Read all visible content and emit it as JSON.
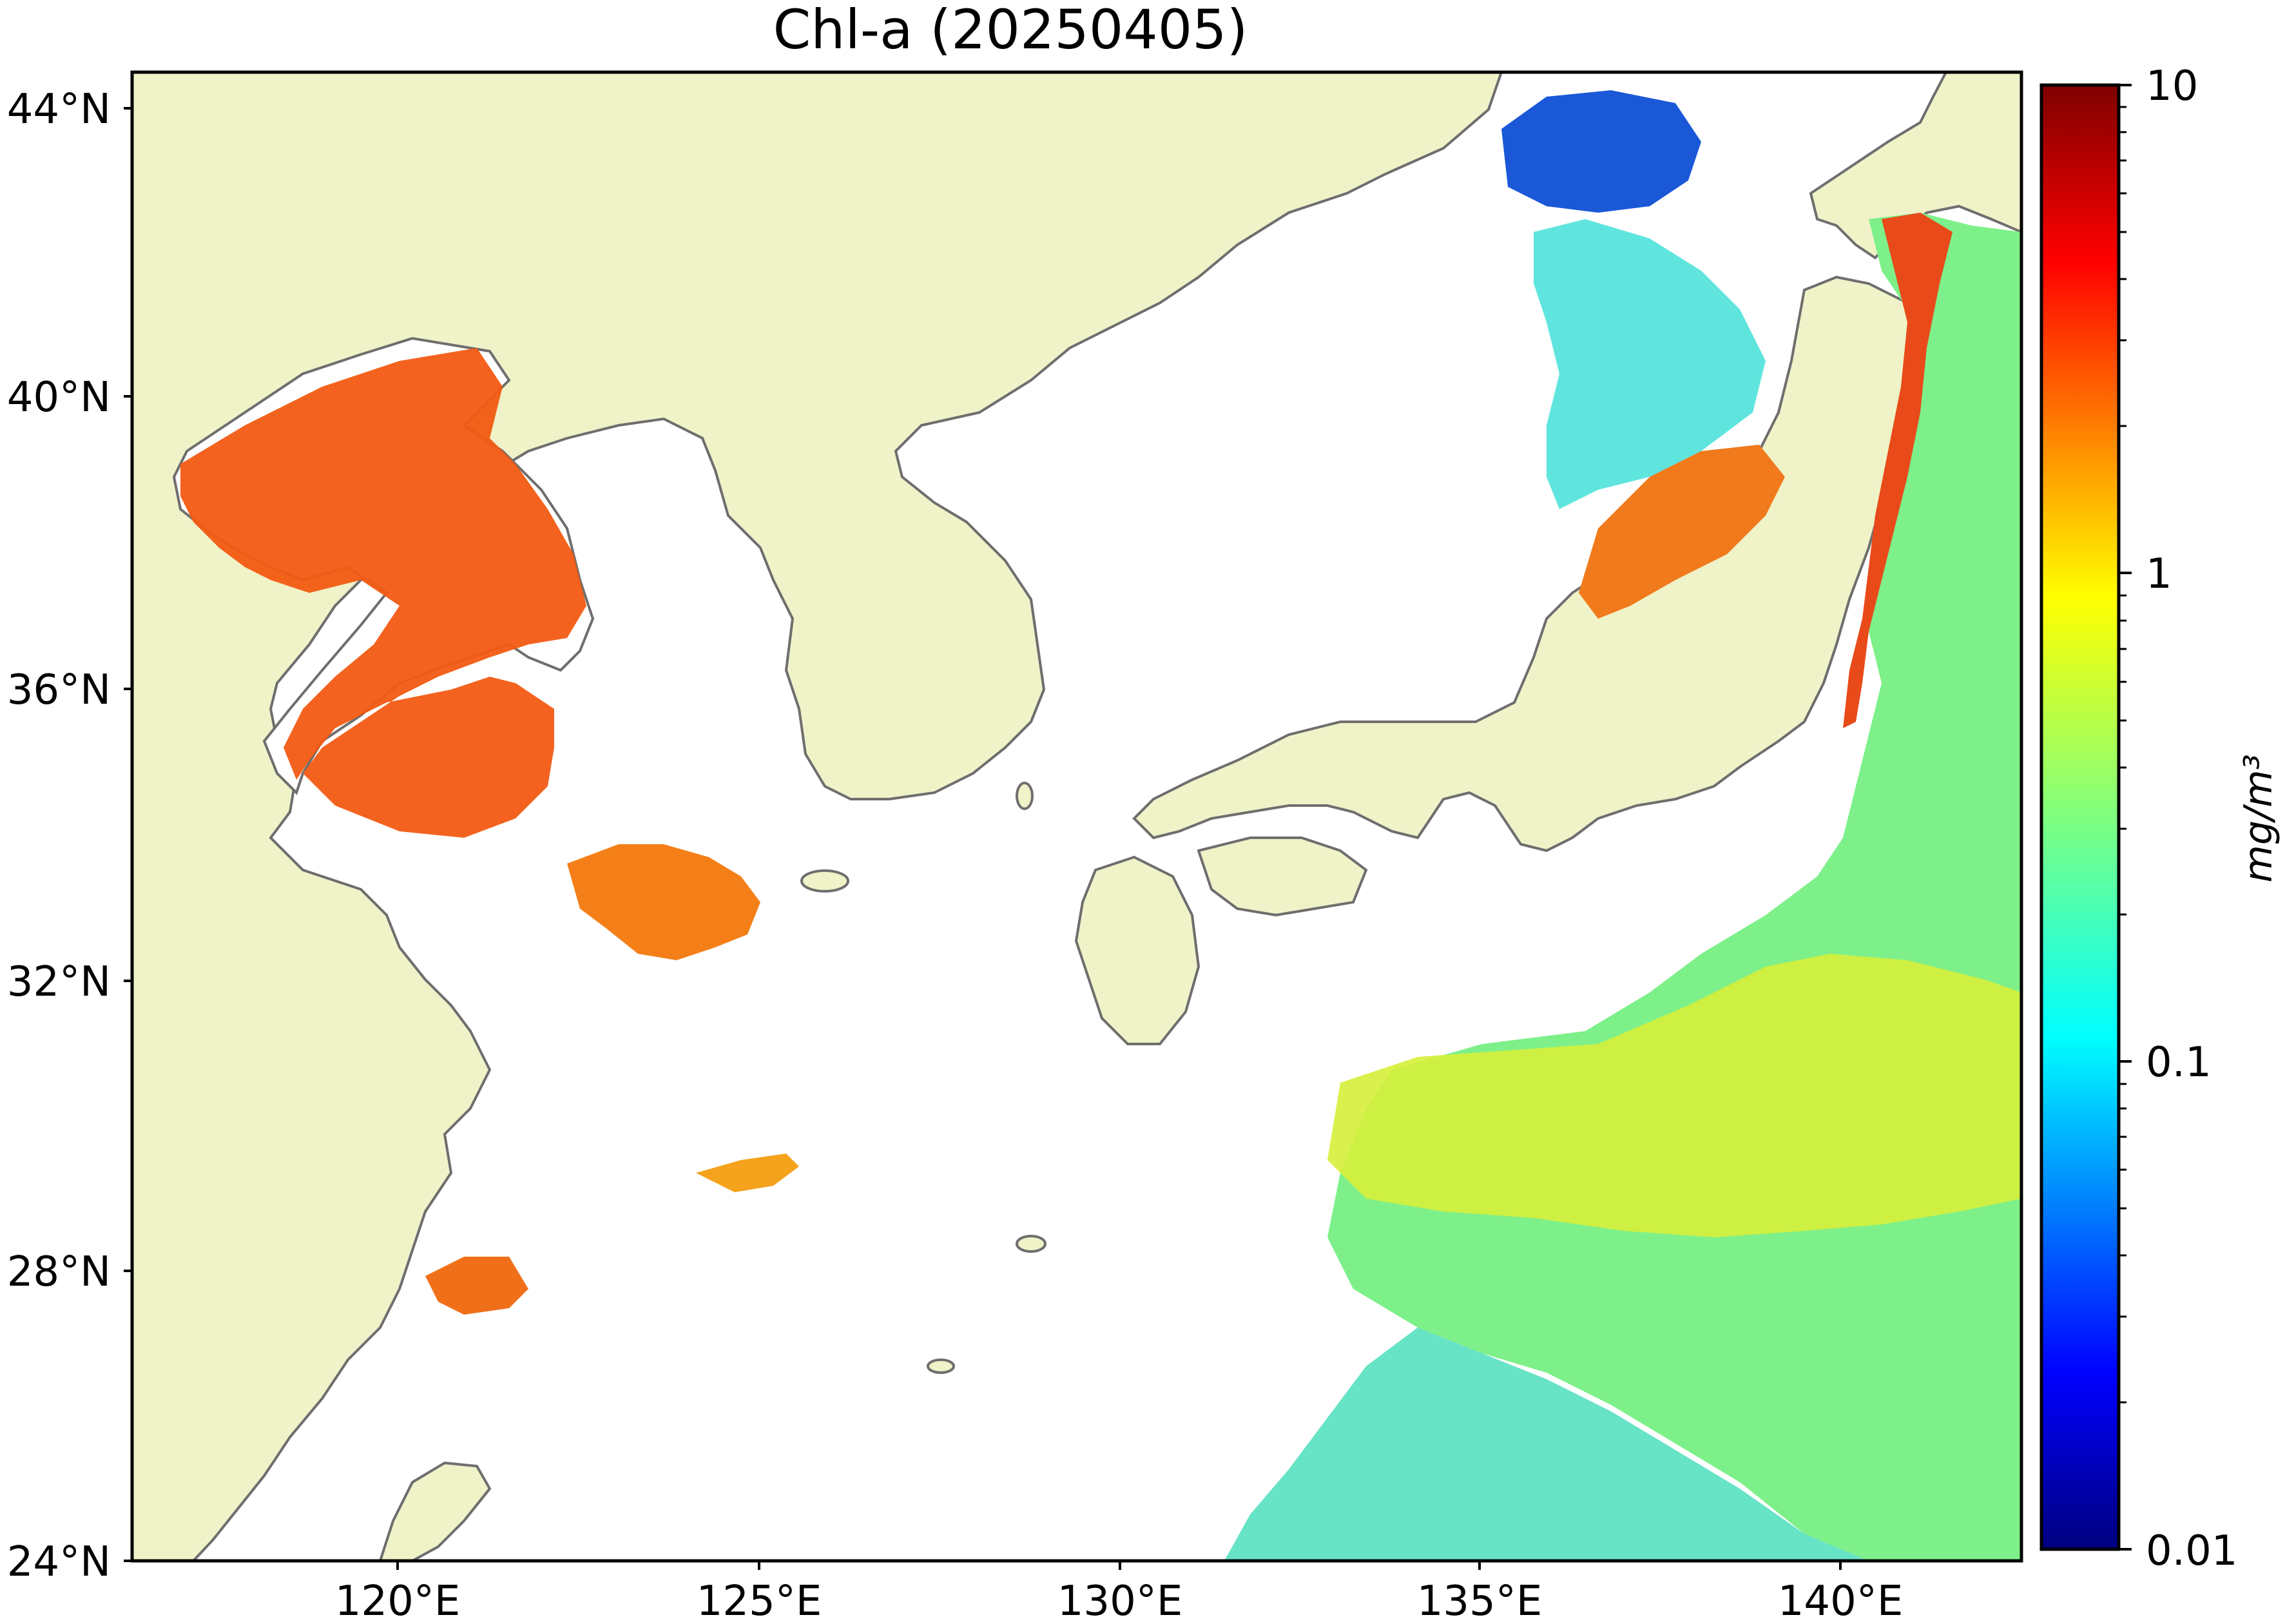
{
  "map": {
    "title": "Chl-a (20250405)",
    "lat_ticks": [
      "24°N",
      "28°N",
      "32°N",
      "36°N",
      "40°N",
      "44°N"
    ],
    "lon_ticks": [
      "120°E",
      "125°E",
      "130°E",
      "135°E",
      "140°E"
    ],
    "extent": {
      "lon": [
        117,
        143
      ],
      "lat": [
        24,
        44.5
      ]
    },
    "colors": {
      "land": "#f0f2c8",
      "coast": "#6e6e6e",
      "frame": "#000000"
    }
  },
  "colorbar": {
    "unit_label": "mg/m³",
    "tick_labels": [
      "0.01",
      "0.1",
      "1",
      "10"
    ],
    "scale": "log",
    "range": [
      0.01,
      10
    ],
    "colormap": "jet"
  }
}
